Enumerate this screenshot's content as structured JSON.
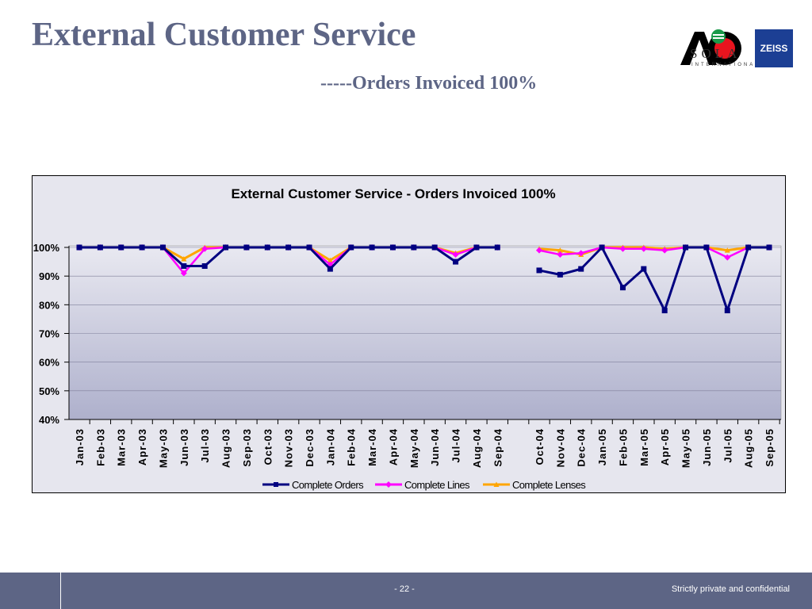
{
  "slide": {
    "title": "External Customer Service",
    "subtitle": "-----Orders Invoiced 100%",
    "logos": {
      "ao_text": "AO",
      "sola_text": "SOLA",
      "sola_sub": "INTERNATIONAL",
      "zeiss_text": "ZEISS",
      "colors": {
        "ao": "#000000",
        "ao_dot": "#e8141e",
        "sola": "#1a9a4a",
        "zeiss": "#1c3f94"
      }
    }
  },
  "footer": {
    "page_number": "- 22 -",
    "confidential": "Strictly private and confidential",
    "color": "#5d6585"
  },
  "chart_data": {
    "type": "line",
    "title": "External Customer Service - Orders Invoiced 100%",
    "xlabel": "",
    "ylabel": "",
    "ylim": [
      40,
      100
    ],
    "yticks": [
      "40%",
      "50%",
      "60%",
      "70%",
      "80%",
      "90%",
      "100%"
    ],
    "grid": true,
    "legend_position": "bottom",
    "categories": [
      "Jan-03",
      "Feb-03",
      "Mar-03",
      "Apr-03",
      "May-03",
      "Jun-03",
      "Jul-03",
      "Aug-03",
      "Sep-03",
      "Oct-03",
      "Nov-03",
      "Dec-03",
      "Jan-04",
      "Feb-04",
      "Mar-04",
      "Apr-04",
      "May-04",
      "Jun-04",
      "Jul-04",
      "Aug-04",
      "Sep-04",
      "",
      "Oct-04",
      "Nov-04",
      "Dec-04",
      "Jan-05",
      "Feb-05",
      "Mar-05",
      "Apr-05",
      "May-05",
      "Jun-05",
      "Jul-05",
      "Aug-05",
      "Sep-05"
    ],
    "series": [
      {
        "name": "Complete Orders",
        "color": "#000080",
        "values": [
          100,
          100,
          100,
          100,
          100,
          93.5,
          93.5,
          100,
          100,
          100,
          100,
          100,
          92.5,
          100,
          100,
          100,
          100,
          100,
          95,
          100,
          100,
          null,
          92,
          90.5,
          92.5,
          100,
          86,
          92.5,
          78,
          100,
          100,
          78,
          100,
          100
        ]
      },
      {
        "name": "Complete Lines",
        "color": "#ff00ff",
        "values": [
          100,
          100,
          100,
          100,
          100,
          91,
          99.5,
          100,
          100,
          100,
          100,
          100,
          94,
          100,
          100,
          100,
          100,
          100,
          97.5,
          100,
          100,
          null,
          99,
          97.5,
          98,
          100,
          99.5,
          99.5,
          99,
          100,
          100,
          96.5,
          100,
          100
        ]
      },
      {
        "name": "Complete Lenses",
        "color": "#ffa500",
        "values": [
          100,
          100,
          100,
          100,
          100,
          96,
          100,
          100,
          100,
          100,
          100,
          100,
          95.5,
          100,
          100,
          100,
          100,
          100,
          98,
          100,
          100,
          null,
          99.5,
          99,
          97.5,
          100,
          100,
          100,
          99.5,
          100,
          100,
          99,
          100,
          100
        ]
      }
    ]
  }
}
